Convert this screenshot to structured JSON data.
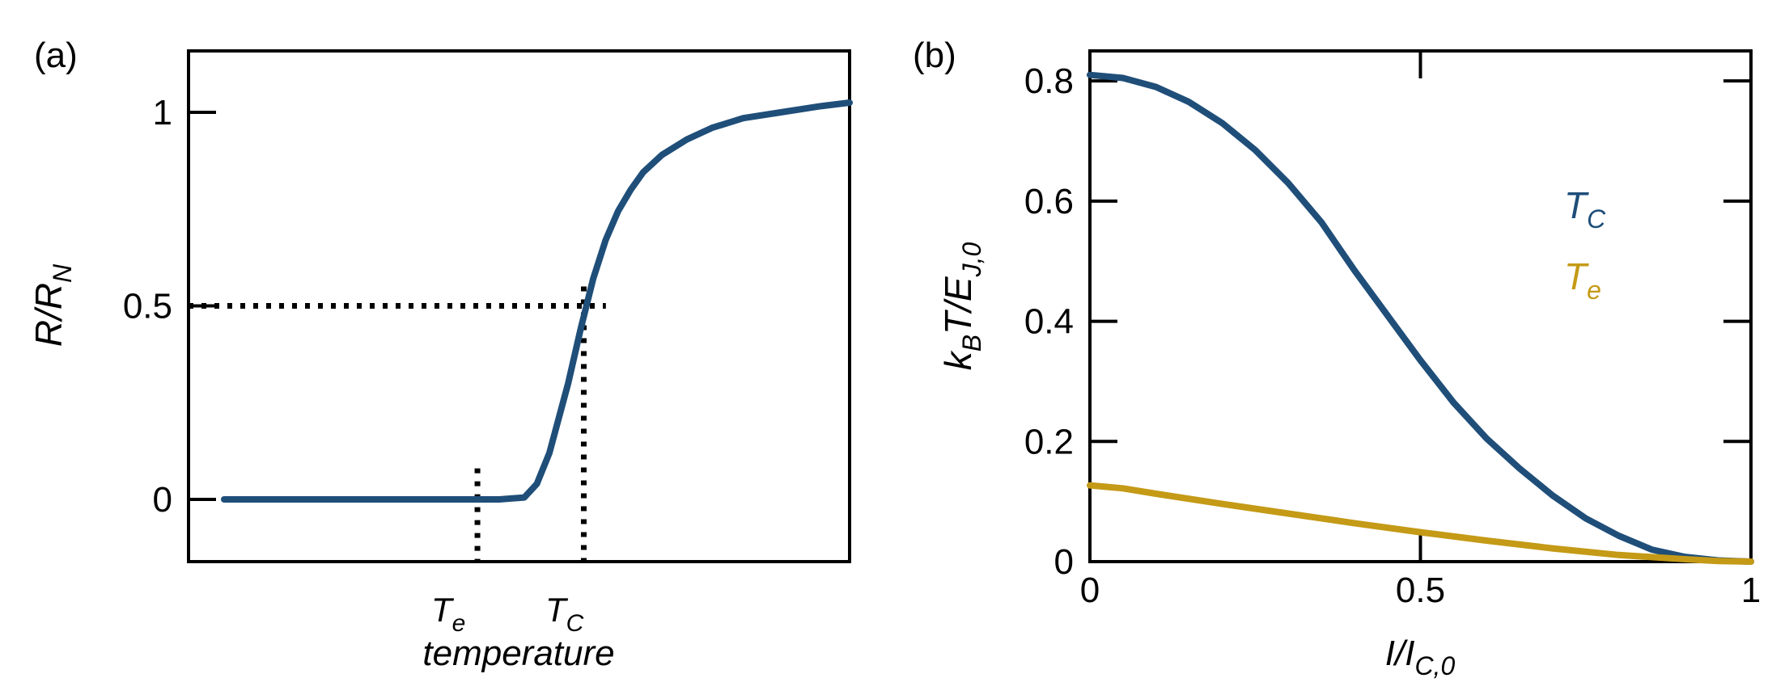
{
  "chart_data": [
    {
      "panel": "(a)",
      "type": "line",
      "title": "",
      "xlabel": "temperature",
      "ylabel": "R/R",
      "ylabel_sub": "N",
      "ylim": [
        -0.17,
        1.17
      ],
      "yticks": [
        {
          "value": 0,
          "label": "0"
        },
        {
          "value": 0.5,
          "label": "0.5"
        },
        {
          "value": 1,
          "label": "1"
        }
      ],
      "xlim": [
        0,
        1
      ],
      "x_markers": [
        {
          "name": "T",
          "sub": "e",
          "x": 0.405,
          "y_top": 0.08
        },
        {
          "name": "T",
          "sub": "C",
          "x": 0.575,
          "y_top": 0.55
        }
      ],
      "half_level": {
        "y": 0.5,
        "x_end": 0.6
      },
      "series": [
        {
          "name": "R/RN",
          "color": "#1f4e79",
          "x": [
            0,
            0.2,
            0.4,
            0.44,
            0.48,
            0.5,
            0.52,
            0.55,
            0.57,
            0.59,
            0.61,
            0.63,
            0.65,
            0.67,
            0.7,
            0.74,
            0.78,
            0.83,
            0.89,
            0.95,
            1.0
          ],
          "y": [
            0,
            0,
            0,
            0,
            0.005,
            0.04,
            0.12,
            0.3,
            0.44,
            0.57,
            0.67,
            0.745,
            0.8,
            0.845,
            0.89,
            0.93,
            0.96,
            0.985,
            1.0,
            1.015,
            1.025
          ]
        }
      ]
    },
    {
      "panel": "(b)",
      "type": "line",
      "title": "",
      "xlabel": "I/I",
      "xlabel_sub": "C,0",
      "ylabel": "k",
      "ylabel_sub1": "B",
      "ylabel_mid": "T/E",
      "ylabel_sub2": "J,0",
      "xlim": [
        0,
        1
      ],
      "ylim": [
        0,
        0.85
      ],
      "xticks": [
        {
          "value": 0,
          "label": "0"
        },
        {
          "value": 0.5,
          "label": "0.5"
        },
        {
          "value": 1,
          "label": "1"
        }
      ],
      "yticks": [
        {
          "value": 0,
          "label": "0"
        },
        {
          "value": 0.2,
          "label": "0.2"
        },
        {
          "value": 0.4,
          "label": "0.4"
        },
        {
          "value": 0.6,
          "label": "0.6"
        },
        {
          "value": 0.8,
          "label": "0.8"
        }
      ],
      "legend": [
        {
          "name": "T",
          "sub": "C",
          "color": "#1f4e79"
        },
        {
          "name": "T",
          "sub": "e",
          "color": "#c49a16"
        }
      ],
      "series": [
        {
          "name": "TC",
          "color": "#1f4e79",
          "x": [
            0,
            0.05,
            0.1,
            0.15,
            0.2,
            0.25,
            0.3,
            0.35,
            0.4,
            0.45,
            0.5,
            0.55,
            0.6,
            0.65,
            0.7,
            0.75,
            0.8,
            0.85,
            0.9,
            0.95,
            1.0
          ],
          "y": [
            0.81,
            0.805,
            0.79,
            0.765,
            0.73,
            0.685,
            0.63,
            0.565,
            0.485,
            0.41,
            0.335,
            0.265,
            0.205,
            0.155,
            0.11,
            0.072,
            0.043,
            0.02,
            0.008,
            0.002,
            0
          ]
        },
        {
          "name": "Te",
          "color": "#c49a16",
          "x": [
            0,
            0.05,
            0.1,
            0.2,
            0.3,
            0.4,
            0.5,
            0.6,
            0.7,
            0.8,
            0.9,
            0.95,
            1.0
          ],
          "y": [
            0.127,
            0.122,
            0.113,
            0.096,
            0.08,
            0.064,
            0.049,
            0.035,
            0.022,
            0.011,
            0.004,
            0.001,
            0
          ]
        }
      ]
    }
  ]
}
